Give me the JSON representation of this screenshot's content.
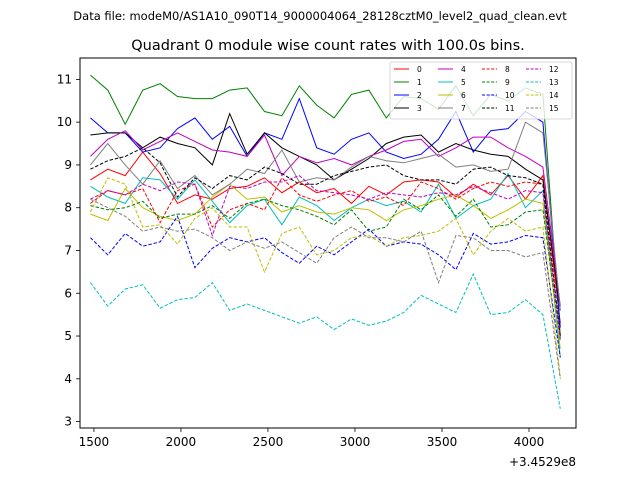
{
  "suptitle": "Data file: modeM0/AS1A10_090T14_9000004064_28128cztM0_level2_quad_clean.evt",
  "chart_data": {
    "type": "line",
    "title": "Quadrant 0 module wise count rates with 100.0s bins.",
    "xlabel": "",
    "ylabel": "",
    "x_offset_label": "+3.4529e8",
    "xlim": [
      1420,
      4270
    ],
    "ylim": [
      2.85,
      11.5
    ],
    "xticks": [
      1500,
      2000,
      2500,
      3000,
      3500,
      4000
    ],
    "yticks": [
      3,
      4,
      5,
      6,
      7,
      8,
      9,
      10,
      11
    ],
    "legend_position": "top-right",
    "x": [
      1480,
      1580,
      1680,
      1780,
      1880,
      1980,
      2080,
      2180,
      2280,
      2380,
      2480,
      2580,
      2680,
      2780,
      2880,
      2980,
      3080,
      3180,
      3280,
      3380,
      3480,
      3580,
      3680,
      3780,
      3880,
      3980,
      4080,
      4180
    ],
    "series": [
      {
        "name": "0",
        "color": "#ff0000",
        "dash": false,
        "values": [
          8.65,
          8.9,
          8.75,
          9.3,
          8.8,
          8.1,
          8.3,
          8.2,
          8.45,
          8.5,
          8.7,
          8.35,
          8.6,
          8.35,
          8.45,
          8.1,
          8.5,
          8.3,
          8.6,
          8.65,
          8.6,
          8.25,
          8.55,
          8.3,
          8.75,
          8.2,
          8.75,
          5.3
        ]
      },
      {
        "name": "1",
        "color": "#008000",
        "dash": false,
        "values": [
          11.1,
          10.75,
          9.95,
          10.75,
          10.9,
          10.6,
          10.55,
          10.55,
          10.75,
          10.8,
          10.25,
          10.15,
          10.85,
          10.4,
          10.1,
          10.65,
          10.75,
          10.1,
          10.6,
          10.55,
          10.3,
          10.85,
          10.15,
          10.65,
          10.5,
          10.8,
          10.65,
          5.0
        ]
      },
      {
        "name": "2",
        "color": "#0000ff",
        "dash": false,
        "values": [
          10.1,
          9.75,
          9.75,
          9.3,
          9.4,
          9.85,
          10.1,
          9.6,
          9.9,
          9.2,
          9.75,
          9.6,
          10.55,
          9.4,
          9.25,
          9.6,
          9.75,
          9.3,
          9.15,
          9.25,
          9.6,
          10.25,
          9.3,
          9.8,
          9.85,
          10.25,
          10.0,
          5.2
        ]
      },
      {
        "name": "3",
        "color": "#000000",
        "dash": false,
        "values": [
          9.7,
          9.75,
          9.75,
          9.4,
          9.65,
          9.5,
          9.4,
          9.0,
          10.2,
          9.25,
          9.75,
          9.4,
          9.2,
          9.0,
          8.65,
          8.9,
          9.15,
          9.5,
          9.65,
          9.7,
          9.3,
          9.5,
          9.35,
          9.25,
          9.2,
          8.9,
          8.65,
          5.6
        ]
      },
      {
        "name": "4",
        "color": "#bf00bf",
        "dash": false,
        "values": [
          9.2,
          9.6,
          9.8,
          9.35,
          9.55,
          9.75,
          9.55,
          9.35,
          9.3,
          9.2,
          9.7,
          8.75,
          9.2,
          9.05,
          9.15,
          9.0,
          9.2,
          9.35,
          9.55,
          9.6,
          9.2,
          9.4,
          9.65,
          9.65,
          9.4,
          9.2,
          8.95,
          5.7
        ]
      },
      {
        "name": "5",
        "color": "#00bfbf",
        "dash": false,
        "values": [
          8.5,
          8.25,
          8.1,
          8.7,
          8.65,
          8.2,
          8.65,
          8.15,
          7.65,
          8.05,
          8.2,
          7.6,
          8.25,
          8.05,
          7.7,
          8.0,
          8.2,
          8.05,
          8.15,
          7.9,
          8.55,
          7.75,
          8.05,
          8.2,
          8.8,
          8.0,
          8.4,
          4.5
        ]
      },
      {
        "name": "6",
        "color": "#bfbf00",
        "dash": false,
        "values": [
          7.85,
          7.7,
          8.45,
          8.0,
          7.8,
          7.7,
          7.85,
          8.25,
          8.55,
          8.2,
          8.25,
          7.9,
          8.05,
          7.9,
          7.85,
          8.0,
          7.95,
          7.7,
          7.95,
          8.05,
          8.2,
          8.3,
          8.05,
          7.75,
          7.95,
          8.2,
          8.1,
          4.7
        ]
      },
      {
        "name": "7",
        "color": "#7f7f7f",
        "dash": false,
        "values": [
          9.0,
          9.5,
          9.0,
          8.55,
          9.1,
          8.45,
          8.75,
          8.3,
          8.55,
          8.9,
          8.8,
          9.35,
          8.6,
          8.7,
          8.65,
          8.95,
          9.2,
          9.1,
          9.05,
          9.15,
          9.25,
          8.95,
          9.0,
          8.85,
          8.9,
          10.0,
          9.75,
          5.6
        ]
      },
      {
        "name": "8",
        "color": "#ff0000",
        "dash": true,
        "values": [
          8.1,
          8.4,
          8.3,
          8.45,
          7.65,
          8.4,
          8.55,
          7.55,
          7.95,
          8.1,
          7.95,
          8.7,
          8.3,
          8.15,
          8.3,
          8.4,
          8.15,
          8.25,
          8.05,
          8.6,
          8.45,
          8.2,
          8.45,
          8.6,
          8.5,
          8.6,
          8.55,
          5.0
        ]
      },
      {
        "name": "9",
        "color": "#008000",
        "dash": true,
        "values": [
          8.05,
          7.95,
          8.0,
          8.15,
          7.75,
          7.85,
          7.85,
          8.05,
          7.75,
          8.1,
          8.2,
          8.05,
          7.95,
          7.8,
          7.6,
          7.95,
          7.45,
          7.55,
          8.2,
          7.95,
          8.3,
          7.8,
          8.2,
          7.55,
          7.6,
          7.9,
          7.95,
          4.9
        ]
      },
      {
        "name": "10",
        "color": "#0000ff",
        "dash": true,
        "values": [
          7.3,
          6.9,
          7.4,
          7.1,
          7.2,
          7.8,
          6.6,
          7.05,
          7.3,
          7.2,
          7.3,
          6.95,
          6.7,
          7.1,
          6.9,
          7.2,
          7.5,
          7.1,
          7.2,
          7.15,
          6.9,
          6.55,
          7.4,
          7.15,
          7.2,
          7.35,
          7.3,
          4.5
        ]
      },
      {
        "name": "11",
        "color": "#000000",
        "dash": true,
        "values": [
          8.9,
          9.1,
          9.2,
          9.4,
          9.05,
          8.25,
          8.7,
          8.45,
          8.75,
          8.65,
          8.95,
          8.8,
          8.55,
          8.55,
          8.75,
          8.85,
          8.95,
          9.0,
          8.75,
          8.65,
          8.65,
          8.55,
          8.9,
          8.95,
          8.75,
          8.7,
          8.55,
          5.0
        ]
      },
      {
        "name": "12",
        "color": "#bf00bf",
        "dash": true,
        "values": [
          8.2,
          8.4,
          8.3,
          8.55,
          8.4,
          8.6,
          8.55,
          7.35,
          8.5,
          8.45,
          8.6,
          8.6,
          8.75,
          8.4,
          8.35,
          8.3,
          8.2,
          8.35,
          8.3,
          8.25,
          8.35,
          8.3,
          8.5,
          8.35,
          8.2,
          8.4,
          8.35,
          4.95
        ]
      },
      {
        "name": "13",
        "color": "#00bfbf",
        "dash": true,
        "values": [
          6.25,
          5.7,
          6.1,
          6.2,
          5.65,
          5.85,
          5.9,
          6.25,
          5.6,
          5.75,
          5.6,
          5.45,
          5.3,
          5.45,
          5.15,
          5.4,
          5.25,
          5.35,
          5.55,
          5.95,
          5.75,
          5.55,
          6.45,
          5.5,
          5.55,
          5.85,
          5.5,
          3.3
        ]
      },
      {
        "name": "14",
        "color": "#bfbf00",
        "dash": true,
        "values": [
          7.9,
          8.7,
          8.55,
          7.55,
          7.6,
          7.15,
          7.75,
          8.0,
          7.55,
          7.55,
          6.5,
          7.4,
          7.55,
          6.9,
          7.0,
          7.3,
          7.35,
          7.1,
          7.3,
          7.35,
          7.45,
          7.75,
          6.9,
          7.45,
          7.75,
          7.45,
          7.55,
          4.05
        ]
      },
      {
        "name": "15",
        "color": "#7f7f7f",
        "dash": true,
        "values": [
          8.2,
          8.0,
          7.8,
          7.45,
          7.55,
          7.45,
          7.5,
          7.3,
          7.0,
          7.2,
          7.05,
          7.2,
          6.95,
          6.7,
          7.3,
          7.55,
          7.3,
          7.3,
          7.2,
          7.45,
          6.25,
          7.35,
          7.3,
          7.0,
          7.0,
          6.85,
          6.95,
          4.0
        ]
      }
    ]
  }
}
